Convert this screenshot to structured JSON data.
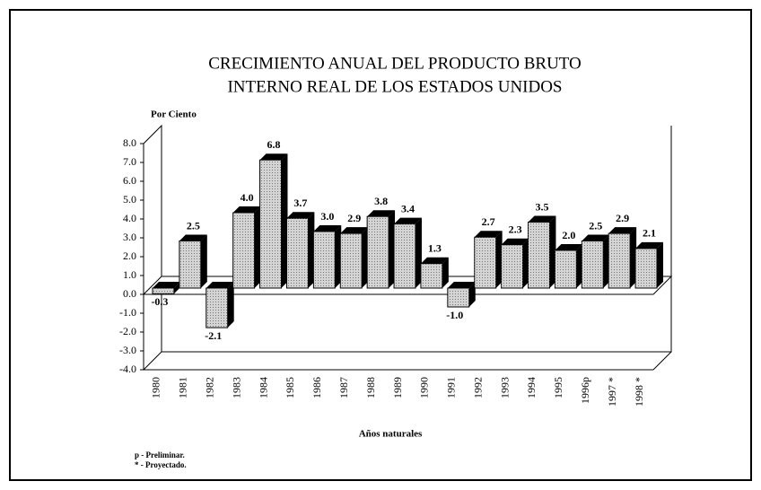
{
  "chart_data": {
    "type": "bar",
    "title": "CRECIMIENTO ANUAL DEL PRODUCTO BRUTO",
    "subtitle": "INTERNO REAL DE LOS ESTADOS UNIDOS",
    "y_label": "Por Ciento",
    "x_label": "Años naturales",
    "notes": [
      "p - Preliminar.",
      "* - Proyectado."
    ],
    "categories": [
      "1980",
      "1981",
      "1982",
      "1983",
      "1984",
      "1985",
      "1986",
      "1987",
      "1988",
      "1989",
      "1990",
      "1991",
      "1992",
      "1993",
      "1994",
      "1995",
      "1996p",
      "1997 *",
      "1998 *"
    ],
    "values": [
      -0.3,
      2.5,
      -2.1,
      4.0,
      6.8,
      3.7,
      3.0,
      2.9,
      3.8,
      3.4,
      1.3,
      -1.0,
      2.7,
      2.3,
      3.5,
      2.0,
      2.5,
      2.9,
      2.1
    ],
    "value_labels": [
      "-0.3",
      "2.5",
      "-2.1",
      "4.0",
      "6.8",
      "3.7",
      "3.0",
      "2.9",
      "3.8",
      "3.4",
      "1.3",
      "-1.0",
      "2.7",
      "2.3",
      "3.5",
      "2.0",
      "2.5",
      "2.9",
      "2.1"
    ],
    "color": "#d4d4d4",
    "ylim": [
      -4,
      8
    ],
    "yticks": [
      {
        "value": -4,
        "label": "-4.0"
      },
      {
        "value": -3,
        "label": "-3.0"
      },
      {
        "value": -2,
        "label": "-2.0"
      },
      {
        "value": -1,
        "label": "-1.0"
      },
      {
        "value": 0,
        "label": "0.0"
      },
      {
        "value": 1,
        "label": "1.0"
      },
      {
        "value": 2,
        "label": "2.0"
      },
      {
        "value": 3,
        "label": "3.0"
      },
      {
        "value": 4,
        "label": "4.0"
      },
      {
        "value": 5,
        "label": "5.0"
      },
      {
        "value": 6,
        "label": "6.0"
      },
      {
        "value": 7,
        "label": "7.0"
      },
      {
        "value": 8,
        "label": "8.0"
      }
    ]
  }
}
